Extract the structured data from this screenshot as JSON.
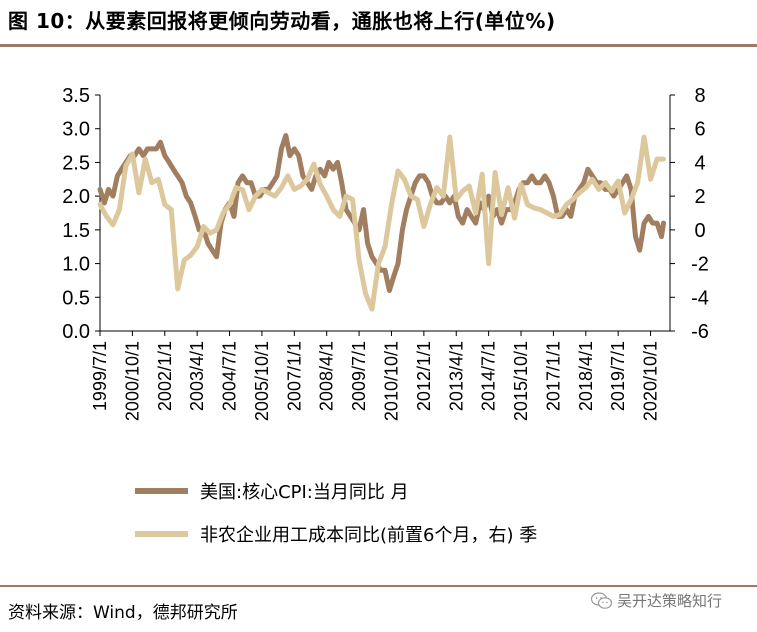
{
  "title": "图 10：从要素回报将更倾向劳动看，通胀也将上行(单位%)",
  "source": "资料来源：Wind，德邦研究所",
  "watermark": {
    "text": "吴开达策略知行",
    "icon": "wechat-icon"
  },
  "colors": {
    "series1": "#a07e5f",
    "series2": "#dcc89c",
    "rule": "#9e7a64"
  },
  "chart_data": {
    "type": "line",
    "title": "",
    "x_tick_labels": [
      "1999/7/1",
      "2000/10/1",
      "2002/1/1",
      "2003/4/1",
      "2004/7/1",
      "2005/10/1",
      "2007/1/1",
      "2008/4/1",
      "2009/7/1",
      "2010/10/1",
      "2012/1/1",
      "2013/4/1",
      "2014/7/1",
      "2015/10/1",
      "2017/1/1",
      "2018/4/1",
      "2019/7/1",
      "2020/10/1"
    ],
    "x_range": [
      1999.5,
      2021.5
    ],
    "y_left": {
      "min": 0,
      "max": 3.5,
      "ticks": [
        "0.0",
        "0.5",
        "1.0",
        "1.5",
        "2.0",
        "2.5",
        "3.0",
        "3.5"
      ]
    },
    "y_right": {
      "min": -6,
      "max": 8,
      "ticks": [
        "-6",
        "-4",
        "-2",
        "0",
        "2",
        "4",
        "6",
        "8"
      ]
    },
    "series": [
      {
        "name": "美国:核心CPI:当月同比 月",
        "axis": "left",
        "x": [
          1999.5,
          1999.67,
          1999.83,
          2000.0,
          2000.17,
          2000.33,
          2000.5,
          2000.67,
          2000.83,
          2001.0,
          2001.17,
          2001.33,
          2001.5,
          2001.67,
          2001.83,
          2002.0,
          2002.17,
          2002.33,
          2002.5,
          2002.67,
          2002.83,
          2003.0,
          2003.17,
          2003.33,
          2003.5,
          2003.67,
          2003.83,
          2004.0,
          2004.17,
          2004.33,
          2004.5,
          2004.67,
          2004.83,
          2005.0,
          2005.17,
          2005.33,
          2005.5,
          2005.67,
          2005.83,
          2006.0,
          2006.17,
          2006.33,
          2006.5,
          2006.67,
          2006.83,
          2007.0,
          2007.17,
          2007.33,
          2007.5,
          2007.67,
          2007.83,
          2008.0,
          2008.17,
          2008.33,
          2008.5,
          2008.67,
          2008.83,
          2009.0,
          2009.17,
          2009.33,
          2009.5,
          2009.67,
          2009.83,
          2010.0,
          2010.17,
          2010.33,
          2010.5,
          2010.67,
          2010.83,
          2011.0,
          2011.17,
          2011.33,
          2011.5,
          2011.67,
          2011.83,
          2012.0,
          2012.17,
          2012.33,
          2012.5,
          2012.67,
          2012.83,
          2013.0,
          2013.17,
          2013.33,
          2013.5,
          2013.67,
          2013.83,
          2014.0,
          2014.17,
          2014.33,
          2014.5,
          2014.67,
          2014.83,
          2015.0,
          2015.17,
          2015.33,
          2015.5,
          2015.67,
          2015.83,
          2016.0,
          2016.17,
          2016.33,
          2016.5,
          2016.67,
          2016.83,
          2017.0,
          2017.17,
          2017.33,
          2017.5,
          2017.67,
          2017.83,
          2018.0,
          2018.17,
          2018.33,
          2018.5,
          2018.67,
          2018.83,
          2019.0,
          2019.17,
          2019.33,
          2019.5,
          2019.67,
          2019.83,
          2020.0,
          2020.17,
          2020.33,
          2020.5,
          2020.67,
          2020.83,
          2021.0,
          2021.17,
          2021.25
        ],
        "values": [
          2.1,
          1.9,
          2.1,
          2.0,
          2.3,
          2.4,
          2.5,
          2.6,
          2.6,
          2.7,
          2.6,
          2.7,
          2.7,
          2.7,
          2.8,
          2.6,
          2.5,
          2.4,
          2.3,
          2.2,
          2.0,
          1.9,
          1.7,
          1.5,
          1.5,
          1.3,
          1.2,
          1.1,
          1.6,
          1.8,
          1.9,
          1.7,
          2.2,
          2.3,
          2.2,
          2.2,
          2.0,
          2.0,
          2.1,
          2.1,
          2.2,
          2.3,
          2.7,
          2.9,
          2.6,
          2.7,
          2.6,
          2.3,
          2.2,
          2.1,
          2.3,
          2.4,
          2.3,
          2.5,
          2.4,
          2.5,
          2.2,
          1.8,
          1.7,
          1.6,
          1.5,
          1.8,
          1.3,
          1.1,
          1.0,
          0.9,
          0.9,
          0.6,
          0.8,
          1.0,
          1.5,
          1.8,
          2.0,
          2.2,
          2.3,
          2.3,
          2.2,
          2.0,
          1.9,
          1.9,
          2.0,
          1.9,
          2.0,
          1.7,
          1.6,
          1.8,
          1.7,
          1.6,
          1.9,
          1.8,
          2.0,
          1.7,
          1.8,
          1.6,
          1.8,
          1.8,
          1.9,
          2.1,
          2.2,
          2.2,
          2.3,
          2.2,
          2.2,
          2.3,
          2.2,
          2.0,
          1.7,
          1.7,
          1.8,
          1.7,
          2.0,
          2.1,
          2.2,
          2.4,
          2.3,
          2.2,
          2.2,
          2.1,
          2.1,
          2.0,
          2.1,
          2.2,
          2.3,
          2.1,
          1.4,
          1.2,
          1.6,
          1.7,
          1.6,
          1.6,
          1.4,
          1.6
        ],
        "color": "#a07e5f"
      },
      {
        "name": "非农企业用工成本同比(前置6个月，右) 季",
        "axis": "right",
        "x": [
          1999.5,
          1999.75,
          2000.0,
          2000.25,
          2000.5,
          2000.75,
          2001.0,
          2001.25,
          2001.5,
          2001.75,
          2002.0,
          2002.25,
          2002.5,
          2002.75,
          2003.0,
          2003.25,
          2003.5,
          2003.75,
          2004.0,
          2004.25,
          2004.5,
          2004.75,
          2005.0,
          2005.25,
          2005.5,
          2005.75,
          2006.0,
          2006.25,
          2006.5,
          2006.75,
          2007.0,
          2007.25,
          2007.5,
          2007.75,
          2008.0,
          2008.25,
          2008.5,
          2008.75,
          2009.0,
          2009.25,
          2009.5,
          2009.75,
          2010.0,
          2010.25,
          2010.5,
          2010.75,
          2011.0,
          2011.25,
          2011.5,
          2011.75,
          2012.0,
          2012.25,
          2012.5,
          2012.75,
          2013.0,
          2013.25,
          2013.5,
          2013.75,
          2014.0,
          2014.25,
          2014.5,
          2014.75,
          2015.0,
          2015.25,
          2015.5,
          2015.75,
          2016.0,
          2016.25,
          2016.5,
          2016.75,
          2017.0,
          2017.25,
          2017.5,
          2017.75,
          2018.0,
          2018.25,
          2018.5,
          2018.75,
          2019.0,
          2019.25,
          2019.5,
          2019.75,
          2020.0,
          2020.25,
          2020.5,
          2020.75,
          2021.0,
          2021.25
        ],
        "values": [
          1.5,
          0.8,
          0.3,
          1.2,
          3.8,
          4.5,
          2.2,
          4.2,
          2.8,
          3.0,
          1.5,
          1.2,
          -3.5,
          -1.8,
          -1.5,
          -1.0,
          0.2,
          -0.2,
          0.0,
          1.0,
          1.5,
          2.5,
          2.4,
          1.2,
          2.0,
          2.4,
          2.2,
          2.0,
          2.5,
          3.2,
          2.4,
          2.6,
          3.0,
          3.9,
          2.7,
          2.0,
          1.2,
          0.8,
          2.0,
          1.8,
          -1.8,
          -3.8,
          -4.7,
          -2.0,
          -1.0,
          1.5,
          3.5,
          3.0,
          2.0,
          1.8,
          0.2,
          1.5,
          2.5,
          2.0,
          5.5,
          1.8,
          2.3,
          2.6,
          1.0,
          3.3,
          -2.0,
          3.4,
          0.9,
          2.5,
          0.7,
          2.7,
          1.5,
          1.3,
          1.2,
          1.0,
          0.8,
          0.9,
          1.5,
          1.8,
          2.2,
          2.5,
          3.0,
          2.4,
          2.8,
          2.3,
          2.9,
          1.0,
          1.8,
          2.8,
          5.5,
          3.0,
          4.2,
          4.2
        ],
        "color": "#dcc89c"
      }
    ]
  }
}
